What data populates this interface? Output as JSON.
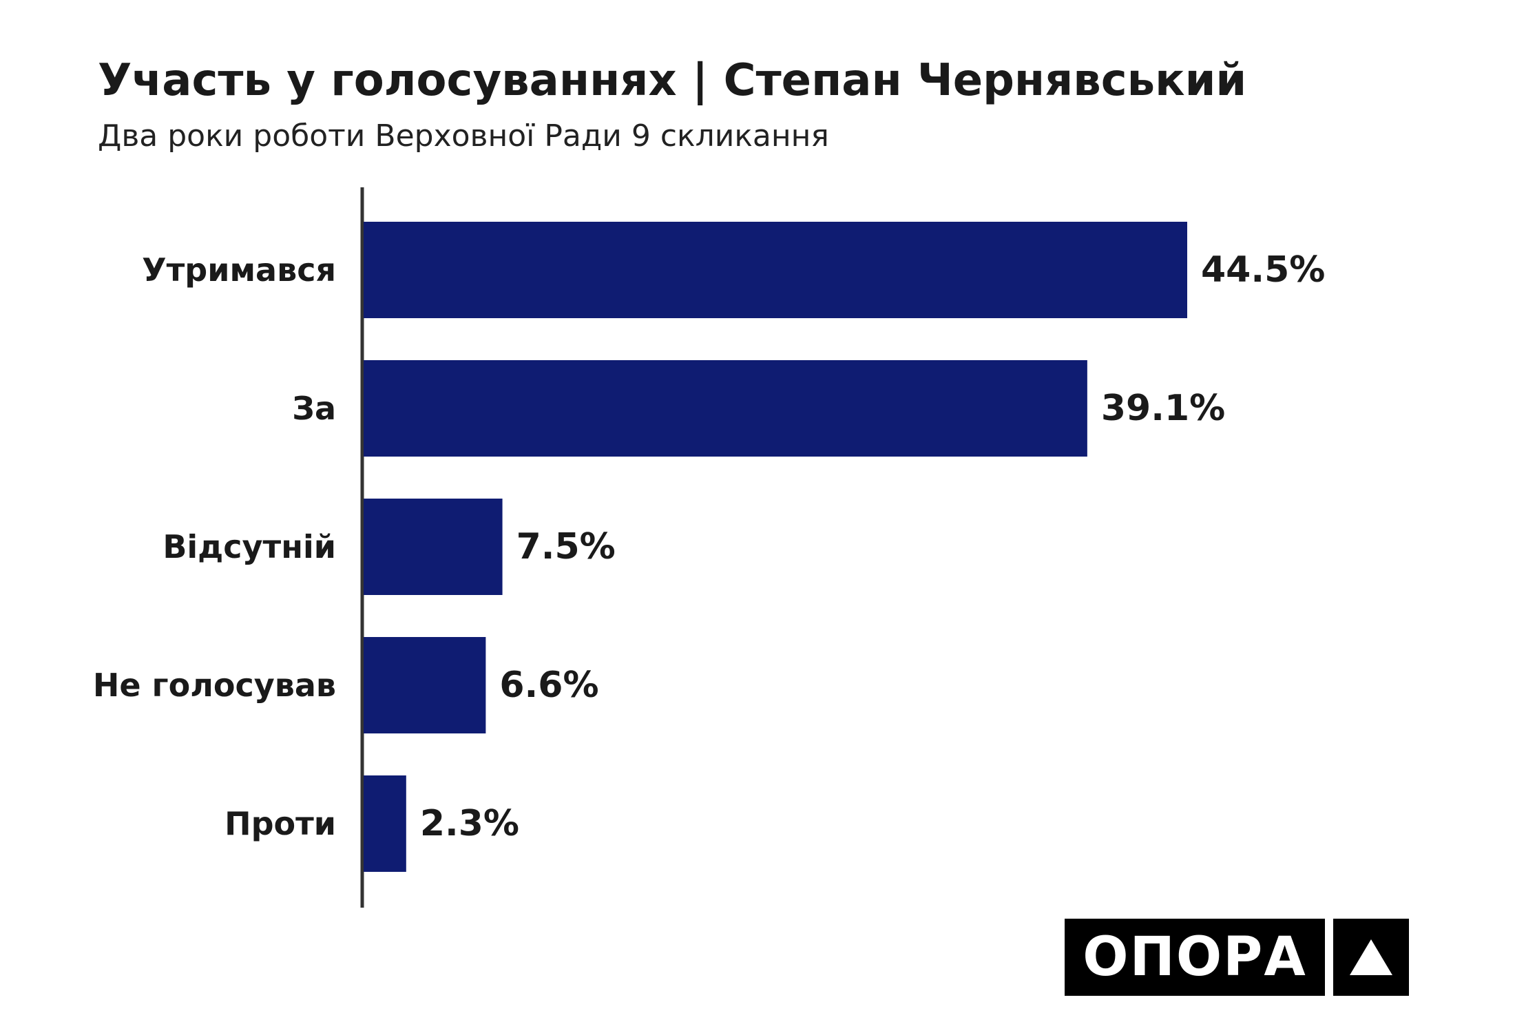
{
  "header": {
    "title": "Участь у голосуваннях | Степан Чернявський",
    "subtitle": "Два роки роботи Верховної Ради 9 скликання"
  },
  "chart_data": {
    "type": "bar",
    "orientation": "horizontal",
    "categories": [
      "Утримався",
      "За",
      "Відсутній",
      "Не голосував",
      "Проти"
    ],
    "values": [
      44.5,
      39.1,
      7.5,
      6.6,
      2.3
    ],
    "value_labels": [
      "44.5%",
      "39.1%",
      "7.5%",
      "6.6%",
      "2.3%"
    ],
    "unit": "%",
    "xlim": [
      0,
      50
    ],
    "grid": false,
    "legend": "none",
    "bar_color": "#0f1c72",
    "axis_color": "#333333"
  },
  "logo": {
    "text": "ОПОРА",
    "mark_icon": "triangle-icon"
  }
}
